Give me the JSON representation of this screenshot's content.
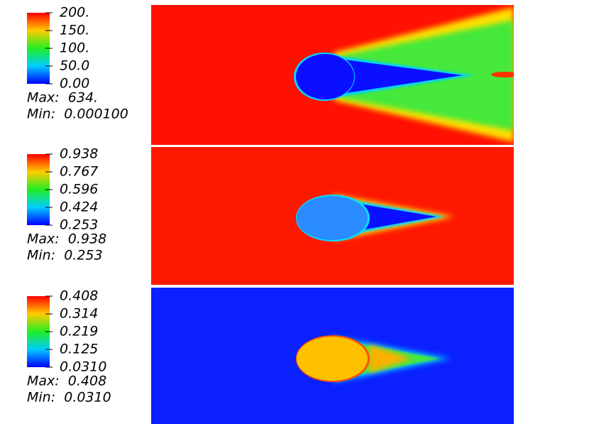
{
  "panels": [
    {
      "colorbar": {
        "labels": [
          "200.",
          "150.",
          "100.",
          "50.0",
          "0.00"
        ]
      },
      "max": "Max:  634.",
      "min": "Min:  0.000100"
    },
    {
      "colorbar": {
        "labels": [
          "0.938",
          "0.767",
          "0.596",
          "0.424",
          "0.253"
        ]
      },
      "max": "Max:  0.938",
      "min": "Min:  0.253"
    },
    {
      "colorbar": {
        "labels": [
          "0.408",
          "0.314",
          "0.219",
          "0.125",
          "0.0310"
        ]
      },
      "max": "Max:  0.408",
      "min": "Min:  0.0310"
    }
  ]
}
